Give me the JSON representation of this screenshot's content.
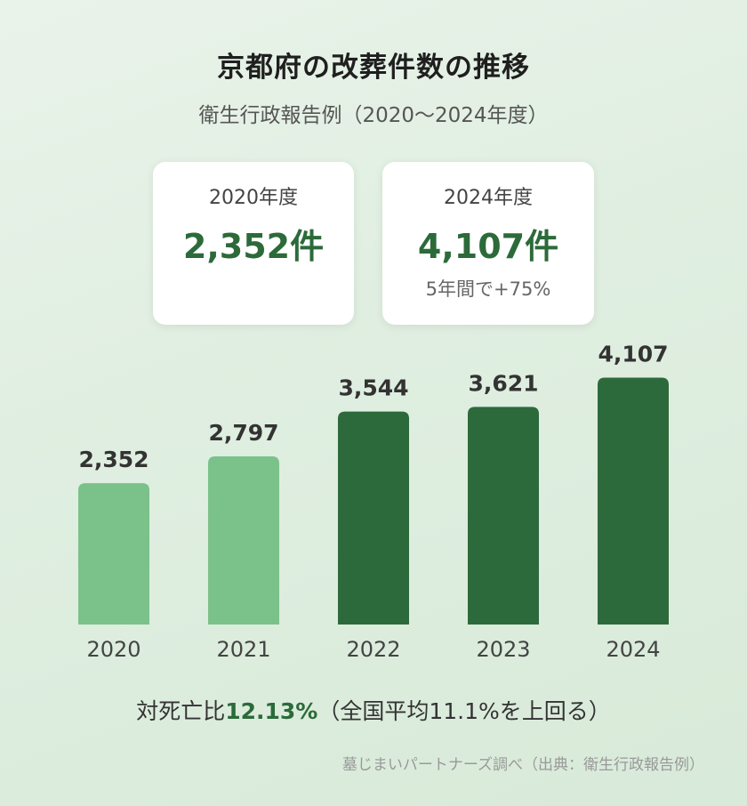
{
  "header": {
    "title": "京都府の改葬件数の推移",
    "subtitle": "衛生行政報告例（2020〜2024年度）"
  },
  "cards": [
    {
      "label": "2020年度",
      "value": "2,352件",
      "note": ""
    },
    {
      "label": "2024年度",
      "value": "4,107件",
      "note": "5年間で+75%"
    }
  ],
  "chart_data": {
    "type": "bar",
    "title": "",
    "xlabel": "",
    "ylabel": "",
    "categories": [
      "2020",
      "2021",
      "2022",
      "2023",
      "2024"
    ],
    "values": [
      2352,
      2797,
      3544,
      3621,
      4107
    ],
    "value_labels": [
      "2,352",
      "2,797",
      "3,544",
      "3,621",
      "4,107"
    ],
    "colors": [
      "#7bc18a",
      "#7bc18a",
      "#2d6a3b",
      "#2d6a3b",
      "#2d6a3b"
    ],
    "label_color": "#333333",
    "tick_color": "#444444",
    "ylim": [
      0,
      4500
    ],
    "grid": false
  },
  "footer": {
    "ratio_prefix": "対死亡比",
    "ratio_value": "12.13%",
    "ratio_suffix": "（全国平均11.1%を上回る）",
    "source": "墓じまいパートナーズ調べ（出典：衛生行政報告例）"
  }
}
